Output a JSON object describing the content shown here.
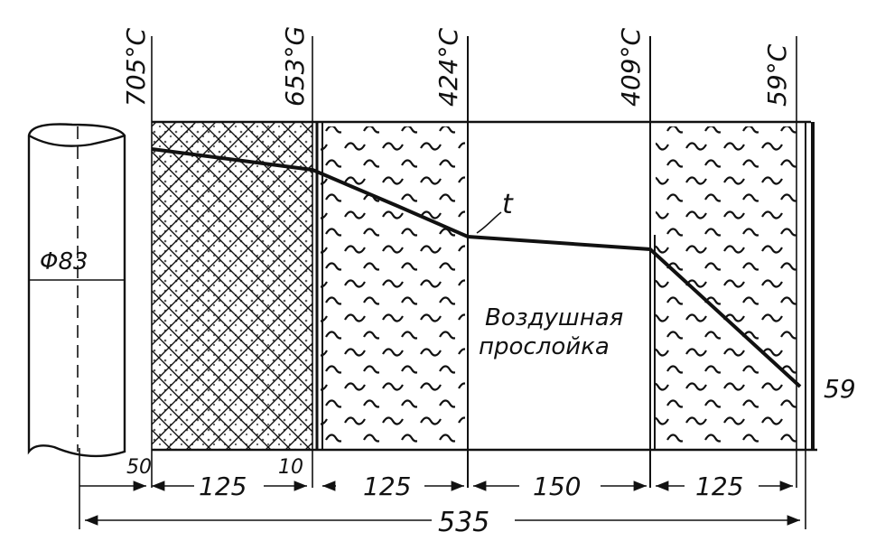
{
  "temperatures": {
    "t1": "705°C",
    "t2": "653°G",
    "t3": "424°C",
    "t4": "409°C",
    "t5": "59°C",
    "end": "59"
  },
  "pipe": {
    "diameter": "Φ83"
  },
  "curve": {
    "label": "t"
  },
  "air_gap": {
    "line1": "Воздушная",
    "line2": "прослойка"
  },
  "dimensions": {
    "gap": "50",
    "layer1": "125",
    "thin": "10",
    "layer2": "125",
    "air": "150",
    "layer4": "125",
    "total": "535"
  }
}
